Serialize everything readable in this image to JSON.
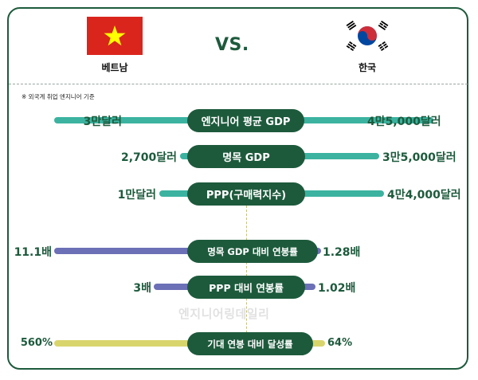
{
  "header": {
    "left_country": "베트남",
    "right_country": "한국",
    "vs": "VS."
  },
  "note": "※ 외국계 취업 엔지니어 기준",
  "rows": [
    {
      "label": "엔지니어 평균 GDP",
      "left": "3만달러",
      "right": "4만5,000달러"
    },
    {
      "label": "명목 GDP",
      "left": "2,700달러",
      "right": "3만5,000달러"
    },
    {
      "label": "PPP(구매력지수)",
      "left": "1만달러",
      "right": "4만4,000달러"
    },
    {
      "label": "명목 GDP 대비 연봉률",
      "left": "11.1배",
      "right": "1.28배"
    },
    {
      "label": "PPP 대비 연봉률",
      "left": "3배",
      "right": "1.02배"
    },
    {
      "label": "기대 연봉 대비 달성률",
      "left": "560%",
      "right": "64%"
    }
  ],
  "watermark": "엔지니어링데일리",
  "colors": {
    "dark_green": "#1d5a3c",
    "teal_bar": "#3bb3a0",
    "purple_bar": "#6c70b6",
    "yellow_bar": "#d9d56d",
    "vietnam_red": "#da251d",
    "vietnam_star": "#ffff00",
    "korea_red": "#cd2e3a",
    "korea_blue": "#0047a0"
  }
}
